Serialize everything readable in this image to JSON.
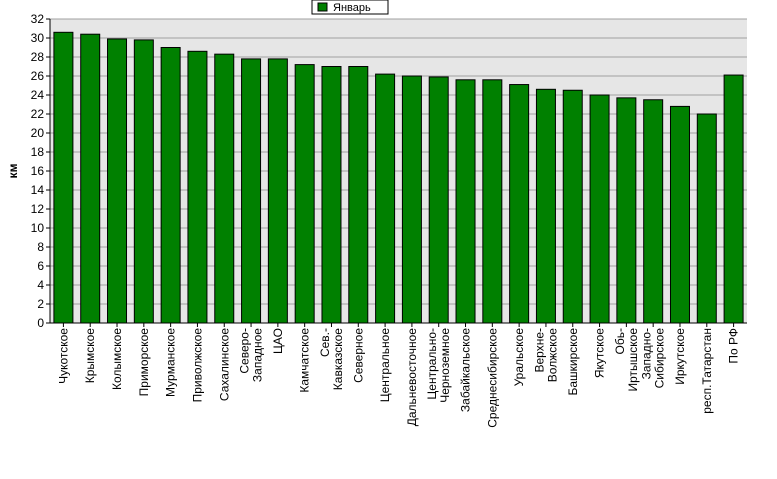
{
  "chart_data": {
    "type": "bar",
    "ylabel": "км",
    "ylim": [
      0,
      32
    ],
    "ytick_step": 2,
    "grid": true,
    "legend_position": "top-center",
    "series": [
      {
        "name": "Январь",
        "color": "#008000",
        "values": [
          30.6,
          30.4,
          29.9,
          29.8,
          29.0,
          28.6,
          28.3,
          27.8,
          27.8,
          27.2,
          27.0,
          27.0,
          26.2,
          26.0,
          25.9,
          25.6,
          25.6,
          25.1,
          24.6,
          24.5,
          24.0,
          23.7,
          23.5,
          22.8,
          22.0,
          26.1
        ]
      }
    ],
    "categories": [
      [
        "Чукотское"
      ],
      [
        "Крымское"
      ],
      [
        "Колымское"
      ],
      [
        "Приморское"
      ],
      [
        "Мурманское"
      ],
      [
        "Приволжское"
      ],
      [
        "Сахалинское"
      ],
      [
        "Северо-",
        "Западное"
      ],
      [
        "ЦАО"
      ],
      [
        "Камчатское"
      ],
      [
        "Сев.-",
        "Кавказское"
      ],
      [
        "Северное"
      ],
      [
        "Центральное"
      ],
      [
        "Дальневосточное"
      ],
      [
        "Центрально-",
        "Черноземное"
      ],
      [
        "Забайкальское"
      ],
      [
        "Среднесибирское"
      ],
      [
        "Уральское"
      ],
      [
        "Верхне-",
        "Волжское"
      ],
      [
        "Башкирское"
      ],
      [
        "Якутское"
      ],
      [
        "Обь-",
        "Иртышское"
      ],
      [
        "Западно-",
        "Сибирское"
      ],
      [
        "Иркутское"
      ],
      [
        "респ.Татарстан"
      ],
      [
        "По РФ"
      ]
    ]
  }
}
